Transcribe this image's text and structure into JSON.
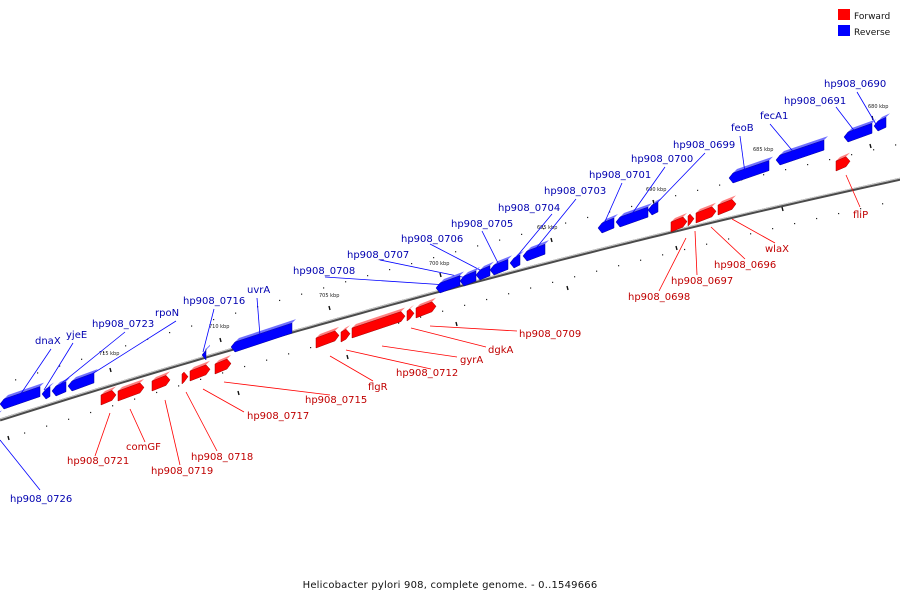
{
  "caption": "Helicobacter pylori 908, complete genome. - 0..1549666",
  "legend": {
    "forward": {
      "label": "Forward",
      "color": "#ff0000"
    },
    "reverse": {
      "label": "Reverse",
      "color": "#0000ff"
    }
  },
  "ticks": [
    "680 kbp",
    "685 kbp",
    "690 kbp",
    "695 kbp",
    "700 kbp",
    "705 kbp",
    "710 kbp",
    "715 kbp"
  ],
  "genes": [
    {
      "id": "hp908_0690",
      "strand": "reverse"
    },
    {
      "id": "hp908_0691",
      "strand": "reverse"
    },
    {
      "id": "fecA1",
      "strand": "reverse"
    },
    {
      "id": "feoB",
      "strand": "reverse"
    },
    {
      "id": "hp908_0699",
      "strand": "reverse"
    },
    {
      "id": "hp908_0700",
      "strand": "reverse"
    },
    {
      "id": "hp908_0701",
      "strand": "reverse"
    },
    {
      "id": "hp908_0703",
      "strand": "reverse"
    },
    {
      "id": "hp908_0704",
      "strand": "reverse"
    },
    {
      "id": "hp908_0705",
      "strand": "reverse"
    },
    {
      "id": "hp908_0706",
      "strand": "reverse"
    },
    {
      "id": "hp908_0707",
      "strand": "reverse"
    },
    {
      "id": "hp908_0708",
      "strand": "reverse"
    },
    {
      "id": "uvrA",
      "strand": "reverse"
    },
    {
      "id": "hp908_0716",
      "strand": "reverse"
    },
    {
      "id": "rpoN",
      "strand": "reverse"
    },
    {
      "id": "hp908_0723",
      "strand": "reverse"
    },
    {
      "id": "yjeE",
      "strand": "reverse"
    },
    {
      "id": "dnaX",
      "strand": "reverse"
    },
    {
      "id": "hp908_0726",
      "strand": "reverse"
    },
    {
      "id": "fliP",
      "strand": "forward"
    },
    {
      "id": "wlaX",
      "strand": "forward"
    },
    {
      "id": "hp908_0696",
      "strand": "forward"
    },
    {
      "id": "hp908_0697",
      "strand": "forward"
    },
    {
      "id": "hp908_0698",
      "strand": "forward"
    },
    {
      "id": "hp908_0709",
      "strand": "forward"
    },
    {
      "id": "dgkA",
      "strand": "forward"
    },
    {
      "id": "gyrA",
      "strand": "forward"
    },
    {
      "id": "hp908_0712",
      "strand": "forward"
    },
    {
      "id": "flgR",
      "strand": "forward"
    },
    {
      "id": "hp908_0715",
      "strand": "forward"
    },
    {
      "id": "hp908_0717",
      "strand": "forward"
    },
    {
      "id": "hp908_0718",
      "strand": "forward"
    },
    {
      "id": "hp908_0719",
      "strand": "forward"
    },
    {
      "id": "comGF",
      "strand": "forward"
    },
    {
      "id": "hp908_0721",
      "strand": "forward"
    }
  ]
}
